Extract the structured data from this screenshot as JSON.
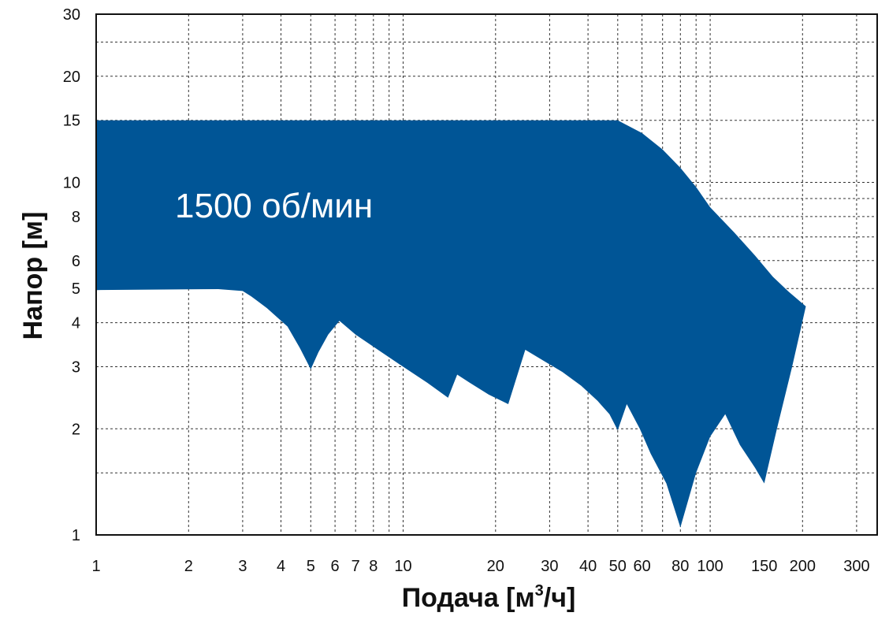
{
  "chart_data": {
    "type": "area",
    "x_scale": "log",
    "y_scale": "log",
    "xlim": [
      1,
      350
    ],
    "ylim": [
      1,
      30
    ],
    "xlabel": "Подача [м³/ч]",
    "xlabel_main": "Подача [м",
    "xlabel_sup": "3",
    "xlabel_tail": "/ч]",
    "ylabel": "Напор [м]",
    "annotation": "1500 об/мин",
    "fill_color": "#005596",
    "x_ticks": [
      {
        "value": 1,
        "label": "1"
      },
      {
        "value": 2,
        "label": "2"
      },
      {
        "value": 3,
        "label": "3"
      },
      {
        "value": 4,
        "label": "4"
      },
      {
        "value": 5,
        "label": "5"
      },
      {
        "value": 6,
        "label": "6"
      },
      {
        "value": 7,
        "label": "7"
      },
      {
        "value": 8,
        "label": "8"
      },
      {
        "value": 10,
        "label": "10"
      },
      {
        "value": 20,
        "label": "20"
      },
      {
        "value": 30,
        "label": "30"
      },
      {
        "value": 40,
        "label": "40"
      },
      {
        "value": 50,
        "label": "50"
      },
      {
        "value": 60,
        "label": "60"
      },
      {
        "value": 80,
        "label": "80"
      },
      {
        "value": 100,
        "label": "100"
      },
      {
        "value": 150,
        "label": "150"
      },
      {
        "value": 200,
        "label": "200"
      },
      {
        "value": 300,
        "label": "300"
      }
    ],
    "x_grid": [
      2,
      3,
      4,
      5,
      6,
      7,
      8,
      9,
      10,
      20,
      30,
      40,
      50,
      60,
      70,
      80,
      90,
      100,
      200,
      300
    ],
    "y_ticks": [
      {
        "value": 1,
        "label": "1"
      },
      {
        "value": 2,
        "label": "2"
      },
      {
        "value": 3,
        "label": "3"
      },
      {
        "value": 4,
        "label": "4"
      },
      {
        "value": 5,
        "label": "5"
      },
      {
        "value": 6,
        "label": "6"
      },
      {
        "value": 8,
        "label": "8"
      },
      {
        "value": 10,
        "label": "10"
      },
      {
        "value": 15,
        "label": "15"
      },
      {
        "value": 20,
        "label": "20"
      },
      {
        "value": 30,
        "label": "30"
      }
    ],
    "y_grid": [
      1.5,
      2,
      3,
      4,
      5,
      6,
      7,
      8,
      9,
      10,
      15,
      20,
      25
    ],
    "envelope": [
      [
        1,
        15
      ],
      [
        50,
        15
      ],
      [
        60,
        13.8
      ],
      [
        70,
        12.4
      ],
      [
        80,
        11
      ],
      [
        90,
        9.7
      ],
      [
        100,
        8.5
      ],
      [
        120,
        7.2
      ],
      [
        140,
        6.2
      ],
      [
        160,
        5.4
      ],
      [
        180,
        4.9
      ],
      [
        205,
        4.45
      ],
      [
        185,
        3.0
      ],
      [
        165,
        2.0
      ],
      [
        150,
        1.4
      ],
      [
        140,
        1.55
      ],
      [
        125,
        1.8
      ],
      [
        112,
        2.2
      ],
      [
        100,
        1.9
      ],
      [
        90,
        1.5
      ],
      [
        80,
        1.05
      ],
      [
        72,
        1.4
      ],
      [
        64,
        1.7
      ],
      [
        59,
        2.0
      ],
      [
        53.5,
        2.35
      ],
      [
        50,
        1.98
      ],
      [
        47,
        2.2
      ],
      [
        43,
        2.4
      ],
      [
        38,
        2.65
      ],
      [
        33,
        2.9
      ],
      [
        29,
        3.1
      ],
      [
        25,
        3.35
      ],
      [
        22,
        2.35
      ],
      [
        19,
        2.5
      ],
      [
        16.5,
        2.7
      ],
      [
        15,
        2.85
      ],
      [
        14,
        2.45
      ],
      [
        12,
        2.7
      ],
      [
        10,
        3.0
      ],
      [
        8.5,
        3.3
      ],
      [
        7,
        3.7
      ],
      [
        6.2,
        4.05
      ],
      [
        5.7,
        3.7
      ],
      [
        5.3,
        3.3
      ],
      [
        5,
        2.95
      ],
      [
        4.6,
        3.4
      ],
      [
        4.2,
        3.9
      ],
      [
        3.6,
        4.4
      ],
      [
        3.2,
        4.75
      ],
      [
        3,
        4.92
      ],
      [
        2.5,
        4.98
      ],
      [
        1,
        4.95
      ]
    ]
  }
}
